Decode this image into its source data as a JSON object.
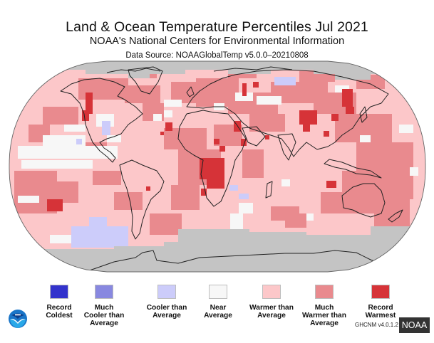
{
  "header": {
    "title": "Land & Ocean Temperature Percentiles Jul 2021",
    "subtitle": "NOAA's National Centers for Environmental Information",
    "data_source": "Data Source: NOAAGlobalTemp v5.0.0–20210808"
  },
  "colors": {
    "record_coldest": "#3333cc",
    "much_cooler": "#8888e0",
    "cooler": "#ccccfa",
    "near_average": "#f7f7f7",
    "warmer": "#fcc7c9",
    "much_warmer": "#e98a8e",
    "record_warmest": "#d63338",
    "no_data": "#c4c4c4",
    "coastline": "#222222"
  },
  "legend": [
    {
      "key": "record_coldest",
      "label_line1": "Record",
      "label_line2": "Coldest",
      "label_line3": ""
    },
    {
      "key": "much_cooler",
      "label_line1": "Much",
      "label_line2": "Cooler than",
      "label_line3": "Average"
    },
    {
      "key": "cooler",
      "label_line1": "Cooler than",
      "label_line2": "Average",
      "label_line3": ""
    },
    {
      "key": "near_average",
      "label_line1": "Near",
      "label_line2": "Average",
      "label_line3": ""
    },
    {
      "key": "warmer",
      "label_line1": "Warmer than",
      "label_line2": "Average",
      "label_line3": ""
    },
    {
      "key": "much_warmer",
      "label_line1": "Much",
      "label_line2": "Warmer than",
      "label_line3": "Average"
    },
    {
      "key": "record_warmest",
      "label_line1": "Record",
      "label_line2": "Warmest",
      "label_line3": ""
    }
  ],
  "footer": {
    "dataset_version": "GHCNM v4.0.1.2",
    "badge": "NOAA",
    "logo_icon": "noaa-logo-icon"
  },
  "map": {
    "projection": "Robinson",
    "regions": [
      {
        "name": "Arctic",
        "category": "no_data"
      },
      {
        "name": "Antarctica / Southern Ocean",
        "category": "no_data"
      },
      {
        "name": "Western North America",
        "category": "record_warmest"
      },
      {
        "name": "Central-West Africa",
        "category": "record_warmest"
      },
      {
        "name": "Eastern Siberia / NE China",
        "category": "record_warmest"
      },
      {
        "name": "Central Asia",
        "category": "record_warmest"
      },
      {
        "name": "Eastern Europe",
        "category": "record_warmest"
      },
      {
        "name": "South Pacific (west of S. America)",
        "category": "record_warmest"
      },
      {
        "name": "Southeast Pacific near Antarctica",
        "category": "cooler"
      },
      {
        "name": "Northwest Russia",
        "category": "cooler"
      },
      {
        "name": "Southern Africa",
        "category": "cooler"
      },
      {
        "name": "Eastern Pacific (equatorial)",
        "category": "near_average"
      },
      {
        "name": "North Atlantic",
        "category": "much_warmer"
      },
      {
        "name": "Western Pacific",
        "category": "much_warmer"
      },
      {
        "name": "Indian Ocean",
        "category": "warmer"
      }
    ]
  }
}
